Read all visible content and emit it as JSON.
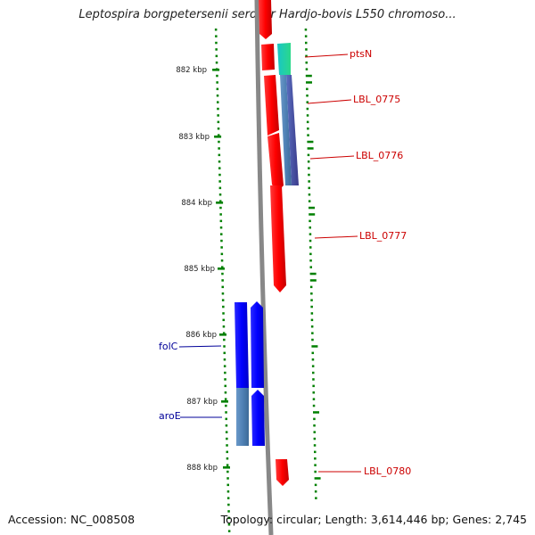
{
  "title": "Leptospira borgpetersenii serovar Hardjo-bovis L550 chromoso...",
  "accession": "Accession: NC_008508",
  "stats": "Topology: circular; Length: 3,614,446 bp; Genes: 2,745",
  "colors": {
    "forward_gene": "#ff0000",
    "forward_gene_teal": "#22c8a8",
    "forward_gene_purple": "#4a4aa0",
    "forward_gene_steel": "#4f7fb5",
    "reverse_gene": "#0000ff",
    "reverse_gene_steel": "#4f81b5",
    "backbone": "#888888",
    "tick": "#008000",
    "label_forward": "#cc0000",
    "label_reverse": "#000099"
  },
  "scale": {
    "unit": "kbp",
    "major_ticks": [
      {
        "kbp": 882,
        "label": "882 kbp"
      },
      {
        "kbp": 883,
        "label": "883 kbp"
      },
      {
        "kbp": 884,
        "label": "884 kbp"
      },
      {
        "kbp": 885,
        "label": "885 kbp"
      },
      {
        "kbp": 886,
        "label": "886 kbp"
      },
      {
        "kbp": 887,
        "label": "887 kbp"
      },
      {
        "kbp": 888,
        "label": "888 kbp"
      }
    ]
  },
  "genes": [
    {
      "label": "ptsN",
      "strand": "+",
      "color": "forward_gene"
    },
    {
      "label": "LBL_0775",
      "strand": "+",
      "color": "forward_gene"
    },
    {
      "label": "LBL_0776",
      "strand": "+",
      "color": "forward_gene"
    },
    {
      "label": "LBL_0777",
      "strand": "+",
      "color": "forward_gene"
    },
    {
      "label": "LBL_0780",
      "strand": "+",
      "color": "forward_gene"
    },
    {
      "label": "folC",
      "strand": "-",
      "color": "reverse_gene"
    },
    {
      "label": "aroE",
      "strand": "-",
      "color": "reverse_gene"
    }
  ]
}
